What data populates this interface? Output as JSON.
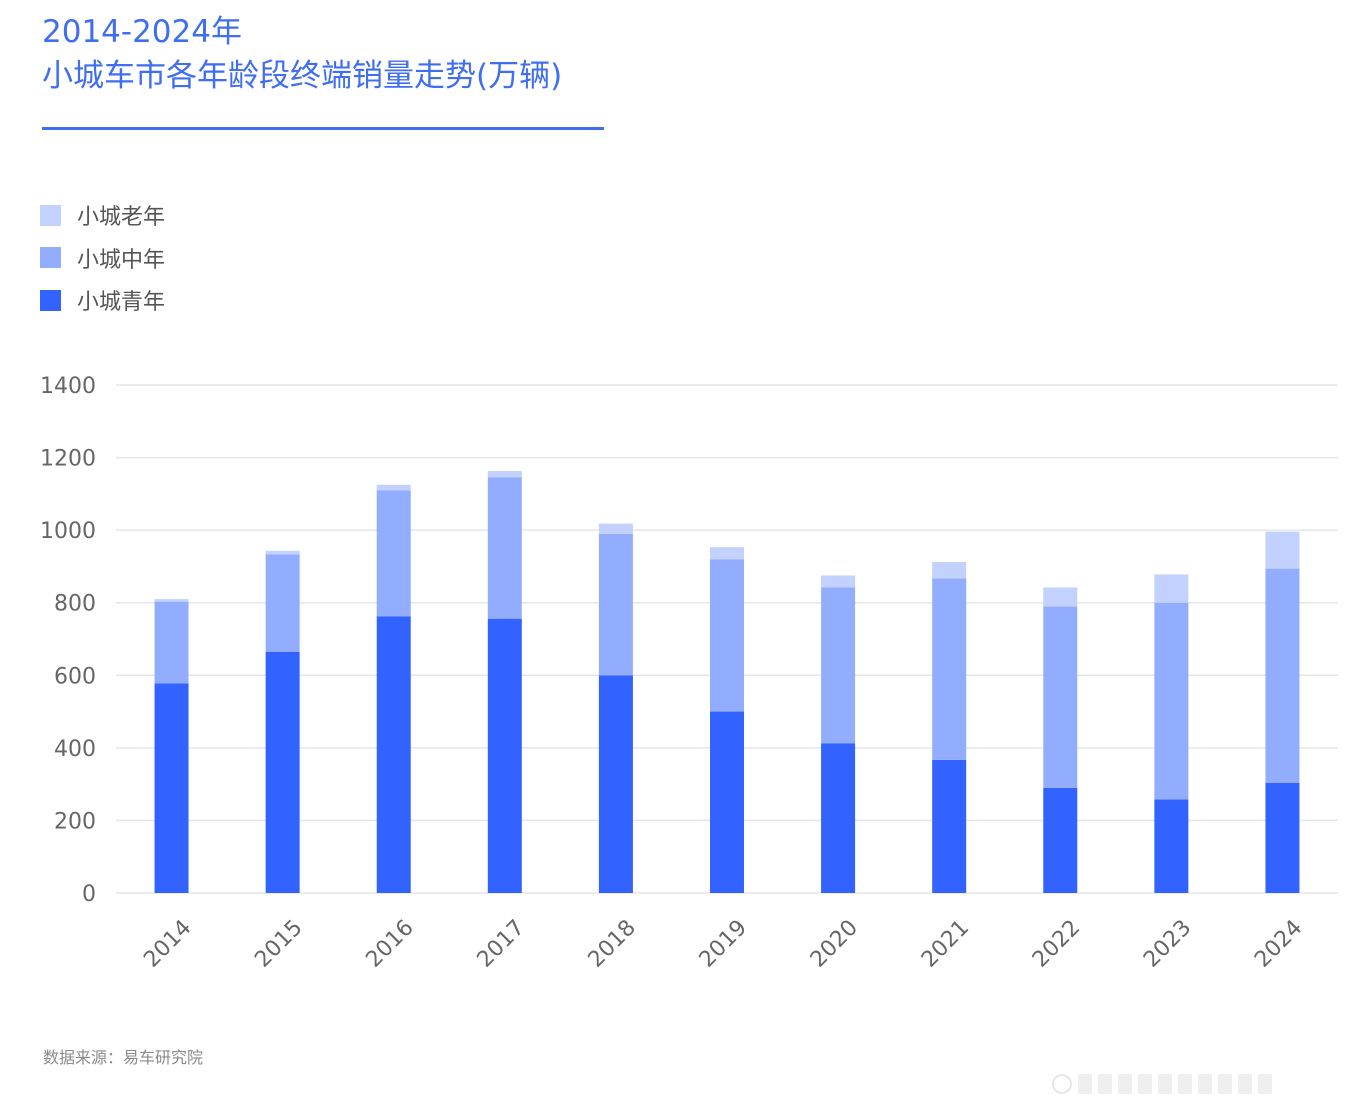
{
  "title": {
    "line1": "2014-2024年",
    "line2": "小城车市各年龄段终端销量走势(万辆)"
  },
  "source": "数据来源：易车研究院",
  "colors": {
    "accent": "#3f6ef0",
    "young": "#3262ff",
    "middle": "#93adfe",
    "old": "#c2d1fe",
    "grid": "#e6e6e6"
  },
  "chart_data": {
    "type": "bar",
    "stacked": true,
    "title": "2014-2024年 小城车市各年龄段终端销量走势(万辆)",
    "xlabel": "",
    "ylabel": "",
    "ylim": [
      0,
      1400
    ],
    "yticks": [
      0,
      200,
      400,
      600,
      800,
      1000,
      1200,
      1400
    ],
    "grid": true,
    "legend_position": "top-left",
    "categories": [
      "2014",
      "2015",
      "2016",
      "2017",
      "2018",
      "2019",
      "2020",
      "2021",
      "2022",
      "2023",
      "2024"
    ],
    "series": [
      {
        "name": "小城青年",
        "color": "#3262ff",
        "values": [
          578,
          665,
          762,
          756,
          600,
          500,
          412,
          367,
          290,
          258,
          304
        ]
      },
      {
        "name": "小城中年",
        "color": "#93adfe",
        "values": [
          225,
          268,
          348,
          390,
          390,
          420,
          430,
          500,
          500,
          542,
          590
        ]
      },
      {
        "name": "小城老年",
        "color": "#c2d1fe",
        "values": [
          7,
          10,
          15,
          17,
          28,
          33,
          33,
          45,
          52,
          78,
          102
        ]
      }
    ]
  }
}
